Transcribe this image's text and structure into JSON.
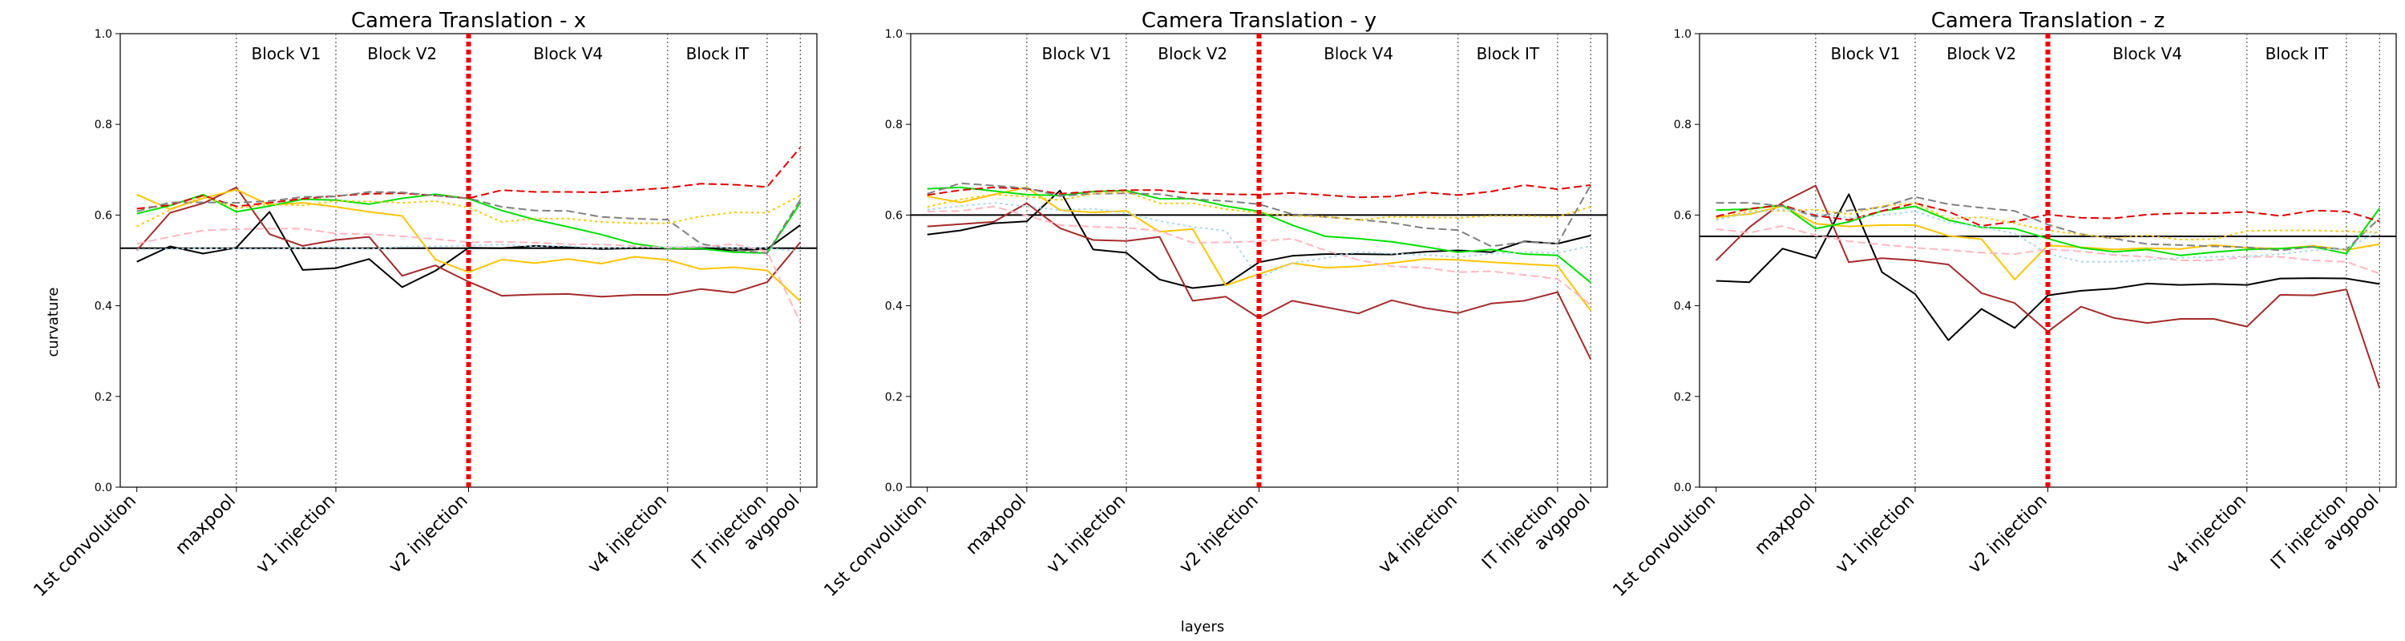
{
  "figure": {
    "xlabel": "layers",
    "ylabel": "curvature"
  },
  "chart_data": [
    {
      "type": "line",
      "title": "Camera Translation - x",
      "ylabel": "curvature",
      "ylim": [
        0,
        1
      ],
      "yticks": [
        "0.0",
        "0.2",
        "0.4",
        "0.6",
        "0.8",
        "1.0"
      ],
      "xticks": [
        {
          "index": 0,
          "label": "1st convolution"
        },
        {
          "index": 3,
          "label": "maxpool"
        },
        {
          "index": 6,
          "label": "v1 injection"
        },
        {
          "index": 10,
          "label": "v2 injection"
        },
        {
          "index": 16,
          "label": "v4 injection"
        },
        {
          "index": 19,
          "label": "IT injection"
        },
        {
          "index": 20,
          "label": "avgpool"
        }
      ],
      "block_labels": [
        {
          "label": "Block V1",
          "x": 4.5
        },
        {
          "label": "Block V2",
          "x": 8.0
        },
        {
          "label": "Block V4",
          "x": 13.0
        },
        {
          "label": "Block IT",
          "x": 17.5
        }
      ],
      "vlines": [
        3,
        6,
        16,
        19,
        20
      ],
      "red_vline": 10,
      "hline": 0.527,
      "x": [
        0,
        1,
        2,
        3,
        4,
        5,
        6,
        7,
        8,
        9,
        10,
        11,
        12,
        13,
        14,
        15,
        16,
        17,
        18,
        19,
        20
      ],
      "series": [
        {
          "color": "#000000",
          "dash": "solid",
          "values": [
            0.497,
            0.531,
            0.515,
            0.528,
            0.607,
            0.479,
            0.483,
            0.503,
            0.441,
            0.477,
            0.528,
            0.527,
            0.532,
            0.529,
            0.525,
            0.527,
            0.526,
            0.525,
            0.522,
            0.525,
            0.578
          ]
        },
        {
          "color": "#a52a2a",
          "dash": "solid",
          "values": [
            0.522,
            0.605,
            0.626,
            0.661,
            0.558,
            0.532,
            0.545,
            0.552,
            0.466,
            0.489,
            0.453,
            0.422,
            0.425,
            0.426,
            0.42,
            0.424,
            0.424,
            0.437,
            0.429,
            0.452,
            0.54
          ]
        },
        {
          "color": "#ffc400",
          "dash": "solid",
          "values": [
            0.645,
            0.613,
            0.637,
            0.656,
            0.622,
            0.627,
            0.618,
            0.607,
            0.598,
            0.502,
            0.474,
            0.502,
            0.494,
            0.503,
            0.493,
            0.508,
            0.501,
            0.481,
            0.485,
            0.478,
            0.41
          ]
        },
        {
          "color": "#00e000",
          "dash": "solid",
          "values": [
            0.603,
            0.621,
            0.645,
            0.607,
            0.62,
            0.635,
            0.633,
            0.624,
            0.637,
            0.646,
            0.636,
            0.61,
            0.59,
            0.574,
            0.557,
            0.537,
            0.527,
            0.526,
            0.518,
            0.516,
            0.627
          ]
        },
        {
          "color": "#e00000",
          "dash": "dashed",
          "values": [
            0.614,
            0.622,
            0.643,
            0.619,
            0.627,
            0.636,
            0.642,
            0.647,
            0.648,
            0.643,
            0.637,
            0.655,
            0.651,
            0.651,
            0.65,
            0.655,
            0.66,
            0.669,
            0.667,
            0.662,
            0.749
          ]
        },
        {
          "color": "#808080",
          "dash": "dashed",
          "values": [
            0.608,
            0.628,
            0.628,
            0.627,
            0.631,
            0.64,
            0.641,
            0.651,
            0.65,
            0.643,
            0.637,
            0.618,
            0.61,
            0.609,
            0.596,
            0.592,
            0.59,
            0.537,
            0.523,
            0.516,
            0.634
          ]
        },
        {
          "color": "#ffc400",
          "dash": "dotted",
          "values": [
            0.575,
            0.611,
            0.641,
            0.615,
            0.624,
            0.621,
            0.631,
            0.63,
            0.627,
            0.631,
            0.617,
            0.585,
            0.592,
            0.592,
            0.585,
            0.582,
            0.582,
            0.597,
            0.606,
            0.605,
            0.643
          ]
        },
        {
          "color": "#ffb6c1",
          "dash": "dashed",
          "values": [
            0.537,
            0.552,
            0.566,
            0.569,
            0.57,
            0.57,
            0.559,
            0.558,
            0.553,
            0.547,
            0.54,
            0.541,
            0.539,
            0.536,
            0.535,
            0.532,
            0.528,
            0.53,
            0.536,
            0.52,
            0.363
          ]
        },
        {
          "color": "#a8d8e8",
          "dash": "dotted",
          "values": [
            0.524,
            0.525,
            0.527,
            0.526,
            0.525,
            0.528,
            0.529,
            0.525,
            0.53,
            0.531,
            0.533,
            0.535,
            0.531,
            0.532,
            0.527,
            0.529,
            0.529,
            0.531,
            0.528,
            0.527,
            0.52
          ]
        }
      ]
    },
    {
      "type": "line",
      "title": "Camera Translation - y",
      "ylabel": "",
      "ylim": [
        0,
        1
      ],
      "yticks": [
        "0.0",
        "0.2",
        "0.4",
        "0.6",
        "0.8",
        "1.0"
      ],
      "xticks": [
        {
          "index": 0,
          "label": "1st convolution"
        },
        {
          "index": 3,
          "label": "maxpool"
        },
        {
          "index": 6,
          "label": "v1 injection"
        },
        {
          "index": 10,
          "label": "v2 injection"
        },
        {
          "index": 16,
          "label": "v4 injection"
        },
        {
          "index": 19,
          "label": "IT injection"
        },
        {
          "index": 20,
          "label": "avgpool"
        }
      ],
      "block_labels": [
        {
          "label": "Block V1",
          "x": 4.5
        },
        {
          "label": "Block V2",
          "x": 8.0
        },
        {
          "label": "Block V4",
          "x": 13.0
        },
        {
          "label": "Block IT",
          "x": 17.5
        }
      ],
      "vlines": [
        3,
        6,
        16,
        19,
        20
      ],
      "red_vline": 10,
      "hline": 0.6,
      "x": [
        0,
        1,
        2,
        3,
        4,
        5,
        6,
        7,
        8,
        9,
        10,
        11,
        12,
        13,
        14,
        15,
        16,
        17,
        18,
        19,
        20
      ],
      "series": [
        {
          "color": "#000000",
          "dash": "solid",
          "values": [
            0.557,
            0.566,
            0.582,
            0.586,
            0.654,
            0.524,
            0.517,
            0.458,
            0.439,
            0.447,
            0.496,
            0.51,
            0.514,
            0.514,
            0.513,
            0.519,
            0.522,
            0.518,
            0.542,
            0.537,
            0.555
          ]
        },
        {
          "color": "#a52a2a",
          "dash": "solid",
          "values": [
            0.575,
            0.58,
            0.585,
            0.626,
            0.571,
            0.545,
            0.543,
            0.552,
            0.411,
            0.42,
            0.373,
            0.411,
            0.397,
            0.383,
            0.412,
            0.395,
            0.384,
            0.405,
            0.411,
            0.43,
            0.282
          ]
        },
        {
          "color": "#ffc400",
          "dash": "solid",
          "values": [
            0.641,
            0.628,
            0.645,
            0.661,
            0.611,
            0.606,
            0.609,
            0.563,
            0.569,
            0.445,
            0.47,
            0.494,
            0.484,
            0.487,
            0.494,
            0.503,
            0.501,
            0.496,
            0.492,
            0.488,
            0.389
          ]
        },
        {
          "color": "#00e000",
          "dash": "solid",
          "values": [
            0.658,
            0.661,
            0.653,
            0.645,
            0.643,
            0.652,
            0.654,
            0.636,
            0.636,
            0.62,
            0.608,
            0.578,
            0.553,
            0.548,
            0.541,
            0.53,
            0.518,
            0.524,
            0.514,
            0.511,
            0.451
          ]
        },
        {
          "color": "#e00000",
          "dash": "dashed",
          "values": [
            0.644,
            0.655,
            0.661,
            0.658,
            0.647,
            0.652,
            0.655,
            0.655,
            0.648,
            0.646,
            0.645,
            0.649,
            0.644,
            0.639,
            0.641,
            0.65,
            0.644,
            0.652,
            0.666,
            0.657,
            0.666
          ]
        },
        {
          "color": "#808080",
          "dash": "dashed",
          "values": [
            0.647,
            0.67,
            0.665,
            0.659,
            0.642,
            0.647,
            0.648,
            0.646,
            0.635,
            0.631,
            0.624,
            0.602,
            0.596,
            0.59,
            0.583,
            0.571,
            0.567,
            0.531,
            0.541,
            0.537,
            0.666
          ]
        },
        {
          "color": "#ffc400",
          "dash": "dotted",
          "values": [
            0.618,
            0.635,
            0.645,
            0.641,
            0.633,
            0.647,
            0.651,
            0.626,
            0.626,
            0.613,
            0.605,
            0.598,
            0.597,
            0.589,
            0.596,
            0.595,
            0.594,
            0.598,
            0.598,
            0.596,
            0.618
          ]
        },
        {
          "color": "#ffb6c1",
          "dash": "dashed",
          "values": [
            0.608,
            0.609,
            0.619,
            0.599,
            0.578,
            0.574,
            0.572,
            0.565,
            0.539,
            0.54,
            0.542,
            0.548,
            0.522,
            0.501,
            0.487,
            0.484,
            0.474,
            0.476,
            0.468,
            0.459,
            0.402
          ]
        },
        {
          "color": "#a8d8e8",
          "dash": "dotted",
          "values": [
            0.612,
            0.62,
            0.627,
            0.619,
            0.611,
            0.614,
            0.604,
            0.587,
            0.574,
            0.565,
            0.462,
            0.494,
            0.505,
            0.519,
            0.515,
            0.512,
            0.507,
            0.515,
            0.518,
            0.516,
            0.532
          ]
        }
      ]
    },
    {
      "type": "line",
      "title": "Camera Translation - z",
      "ylabel": "",
      "ylim": [
        0,
        1
      ],
      "yticks": [
        "0.0",
        "0.2",
        "0.4",
        "0.6",
        "0.8",
        "1.0"
      ],
      "xticks": [
        {
          "index": 0,
          "label": "1st convolution"
        },
        {
          "index": 3,
          "label": "maxpool"
        },
        {
          "index": 6,
          "label": "v1 injection"
        },
        {
          "index": 10,
          "label": "v2 injection"
        },
        {
          "index": 16,
          "label": "v4 injection"
        },
        {
          "index": 19,
          "label": "IT injection"
        },
        {
          "index": 20,
          "label": "avgpool"
        }
      ],
      "block_labels": [
        {
          "label": "Block V1",
          "x": 4.5
        },
        {
          "label": "Block V2",
          "x": 8.0
        },
        {
          "label": "Block V4",
          "x": 13.0
        },
        {
          "label": "Block IT",
          "x": 17.5
        }
      ],
      "vlines": [
        3,
        6,
        16,
        19,
        20
      ],
      "red_vline": 10,
      "hline": 0.553,
      "x": [
        0,
        1,
        2,
        3,
        4,
        5,
        6,
        7,
        8,
        9,
        10,
        11,
        12,
        13,
        14,
        15,
        16,
        17,
        18,
        19,
        20
      ],
      "series": [
        {
          "color": "#000000",
          "dash": "solid",
          "values": [
            0.455,
            0.452,
            0.526,
            0.505,
            0.646,
            0.474,
            0.426,
            0.324,
            0.393,
            0.351,
            0.423,
            0.433,
            0.438,
            0.449,
            0.446,
            0.448,
            0.446,
            0.46,
            0.461,
            0.46,
            0.448
          ]
        },
        {
          "color": "#a52a2a",
          "dash": "solid",
          "values": [
            0.5,
            0.573,
            0.628,
            0.665,
            0.496,
            0.505,
            0.5,
            0.491,
            0.428,
            0.406,
            0.343,
            0.398,
            0.373,
            0.362,
            0.371,
            0.371,
            0.354,
            0.424,
            0.423,
            0.436,
            0.218
          ]
        },
        {
          "color": "#ffc400",
          "dash": "solid",
          "values": [
            0.596,
            0.602,
            0.62,
            0.581,
            0.575,
            0.578,
            0.578,
            0.554,
            0.547,
            0.458,
            0.533,
            0.529,
            0.524,
            0.527,
            0.525,
            0.534,
            0.528,
            0.526,
            0.532,
            0.523,
            0.536
          ]
        },
        {
          "color": "#00e000",
          "dash": "solid",
          "values": [
            0.611,
            0.613,
            0.622,
            0.57,
            0.585,
            0.609,
            0.619,
            0.589,
            0.573,
            0.57,
            0.548,
            0.528,
            0.519,
            0.524,
            0.511,
            0.518,
            0.524,
            0.526,
            0.53,
            0.515,
            0.615
          ]
        },
        {
          "color": "#e00000",
          "dash": "dashed",
          "values": [
            0.597,
            0.614,
            0.622,
            0.599,
            0.589,
            0.609,
            0.626,
            0.608,
            0.576,
            0.586,
            0.601,
            0.594,
            0.593,
            0.601,
            0.604,
            0.604,
            0.607,
            0.598,
            0.61,
            0.608,
            0.586
          ]
        },
        {
          "color": "#808080",
          "dash": "dashed",
          "values": [
            0.627,
            0.627,
            0.62,
            0.596,
            0.61,
            0.617,
            0.64,
            0.624,
            0.616,
            0.609,
            0.579,
            0.558,
            0.548,
            0.536,
            0.534,
            0.531,
            0.529,
            0.522,
            0.53,
            0.524,
            0.593
          ]
        },
        {
          "color": "#ffc400",
          "dash": "dotted",
          "values": [
            0.592,
            0.609,
            0.609,
            0.612,
            0.602,
            0.62,
            0.626,
            0.592,
            0.595,
            0.582,
            0.566,
            0.557,
            0.549,
            0.555,
            0.546,
            0.547,
            0.565,
            0.566,
            0.566,
            0.564,
            0.562
          ]
        },
        {
          "color": "#ffb6c1",
          "dash": "dashed",
          "values": [
            0.569,
            0.561,
            0.576,
            0.555,
            0.542,
            0.535,
            0.528,
            0.523,
            0.517,
            0.514,
            0.525,
            0.52,
            0.512,
            0.508,
            0.5,
            0.5,
            0.508,
            0.508,
            0.5,
            0.497,
            0.471
          ]
        },
        {
          "color": "#a8d8e8",
          "dash": "dotted",
          "values": [
            0.589,
            0.605,
            0.613,
            0.603,
            0.594,
            0.6,
            0.608,
            0.584,
            0.575,
            0.559,
            0.515,
            0.497,
            0.497,
            0.5,
            0.506,
            0.508,
            0.509,
            0.514,
            0.522,
            0.526,
            0.566
          ]
        }
      ]
    }
  ]
}
